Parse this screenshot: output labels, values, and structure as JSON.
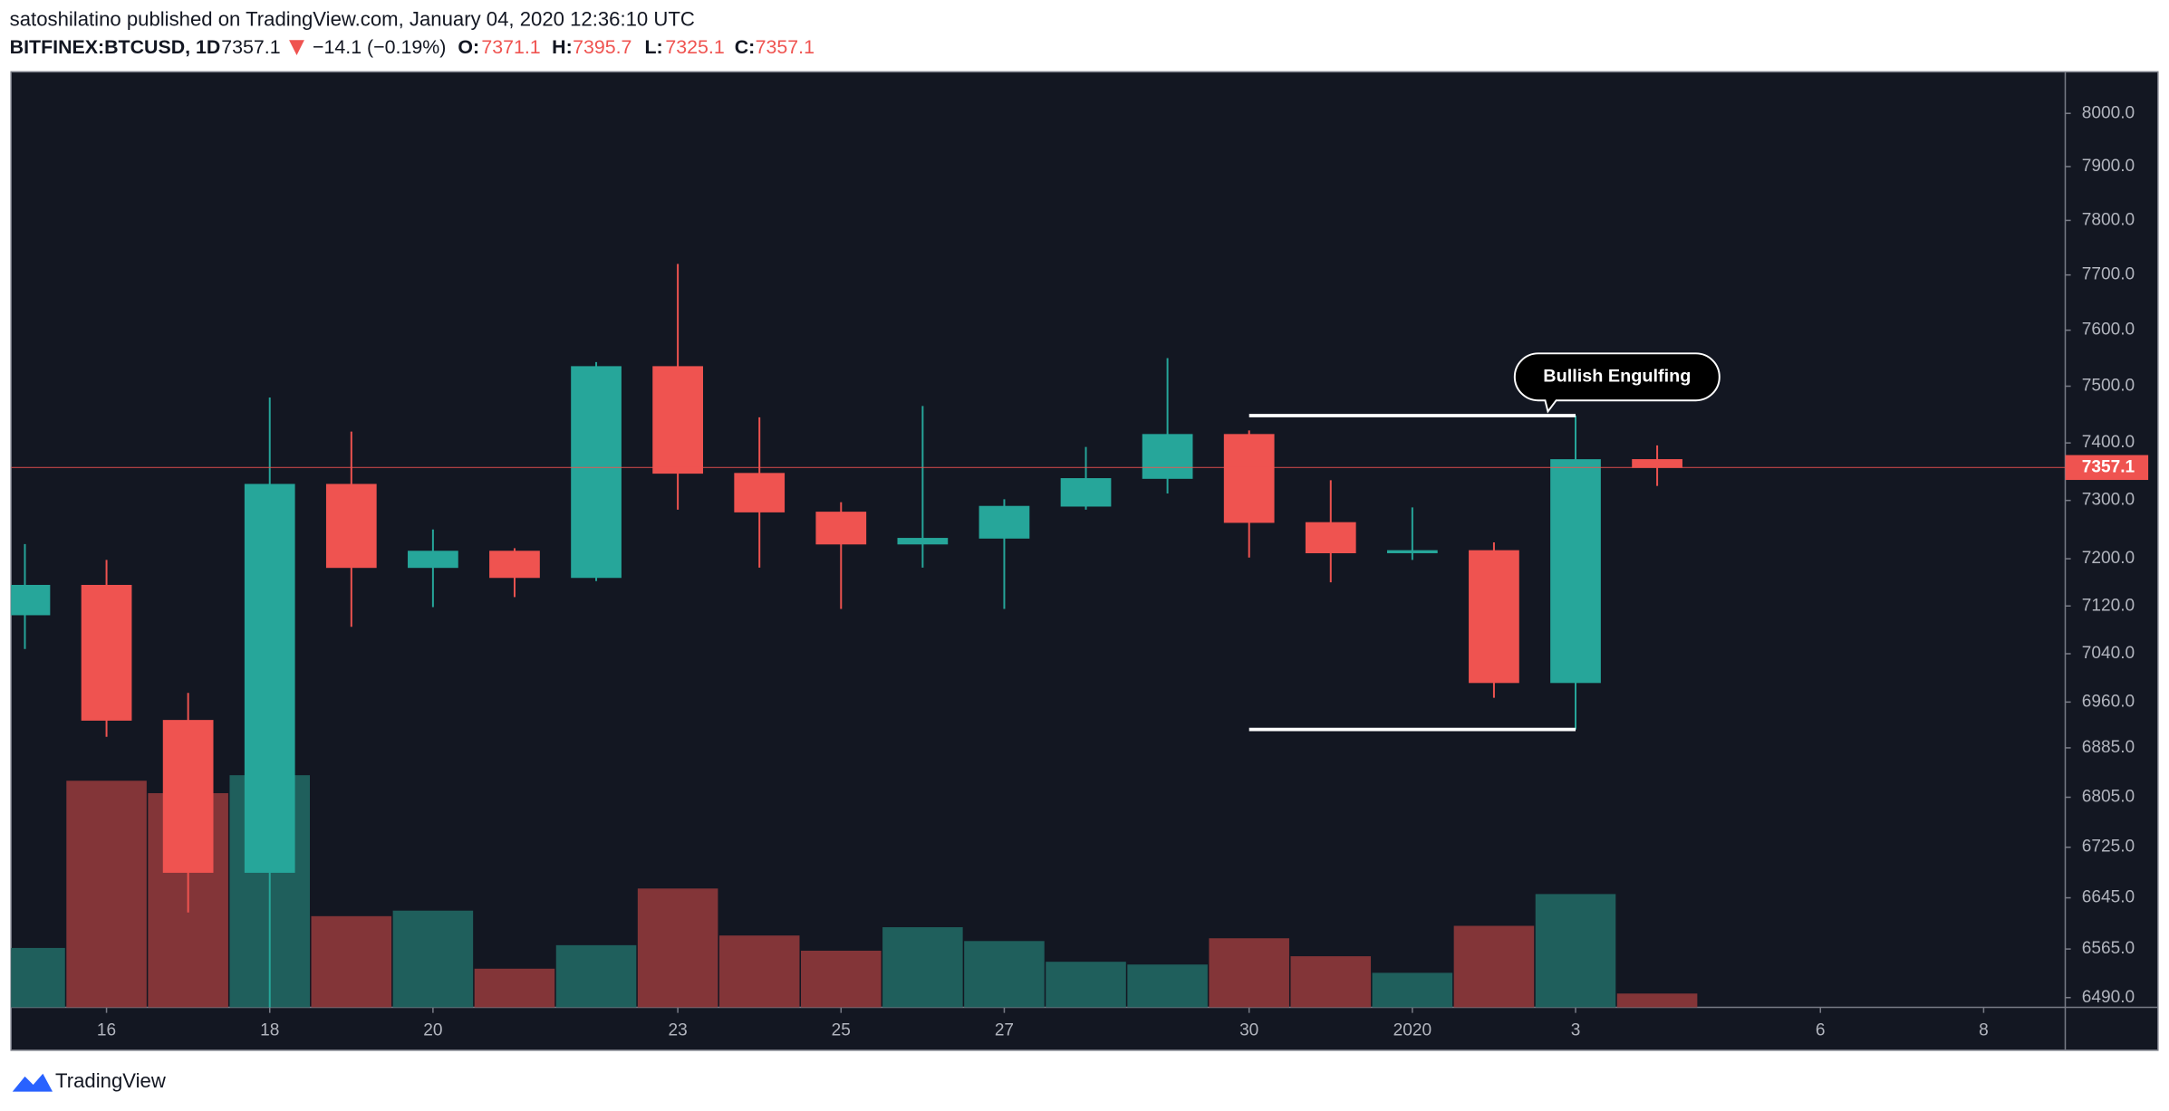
{
  "chart_data": {
    "type": "candlestick",
    "header": {
      "publisher_line": "satoshilatino published on TradingView.com, January 04, 2020 12:36:10 UTC",
      "symbol": "BITFINEX:BTCUSD, 1D",
      "change": "−14.1 (−0.19%)",
      "ohlc_labels": [
        "O:",
        "H:",
        "L:",
        "C:"
      ],
      "brand": "TradingView"
    },
    "annotation": "Bullish Engulfing",
    "categories": [
      null,
      "16",
      null,
      "18",
      null,
      "20",
      null,
      null,
      "23",
      null,
      "25",
      null,
      "27",
      null,
      null,
      "30",
      null,
      "2020",
      null,
      "3",
      null,
      null,
      "6",
      null,
      "8"
    ],
    "open": [
      7105,
      7155,
      6930,
      6685,
      7328,
      7185,
      7213,
      7168,
      7535,
      7347,
      7280,
      7225,
      7235,
      7290,
      7338,
      7415,
      7262,
      7210,
      7214,
      6992,
      7371.1,
      null,
      null,
      null,
      null
    ],
    "high": [
      7225,
      7198,
      6975,
      7480,
      7420,
      7250,
      7218,
      7543,
      7720,
      7445,
      7297,
      7465,
      7302,
      7393,
      7550,
      7422,
      7335,
      7288,
      7228,
      7448,
      7395.7,
      null,
      null,
      null,
      null
    ],
    "low": [
      7048,
      6903,
      6622,
      6440,
      7085,
      7118,
      7135,
      7162,
      7284,
      7185,
      7115,
      7185,
      7115,
      7284,
      7312,
      7202,
      7160,
      7198,
      6967,
      6915,
      7325.1,
      null,
      null,
      null,
      null
    ],
    "close": [
      7155,
      6930,
      6685,
      7328,
      7185,
      7213,
      7168,
      7535,
      7347,
      7280,
      7225,
      7235,
      7290,
      7338,
      7415,
      7262,
      7210,
      7214,
      6992,
      7371,
      7357.1,
      null,
      null,
      null,
      null
    ],
    "volume": [
      43,
      164,
      155,
      168,
      66,
      70,
      28,
      45,
      86,
      52,
      41,
      58,
      48,
      33,
      31,
      50,
      37,
      25,
      59,
      82,
      10,
      null,
      null,
      null,
      null
    ],
    "up_color": "#26a69a",
    "down_color": "#ef5350",
    "volume_up_color": "#1f5f5c",
    "volume_down_color": "#833538",
    "log_scale": true,
    "ylim": [
      6475,
      8079
    ],
    "yticks": [
      {
        "value": 8000,
        "label": "8000.0"
      },
      {
        "value": 7900,
        "label": "7900.0"
      },
      {
        "value": 7800,
        "label": "7800.0"
      },
      {
        "value": 7700,
        "label": "7700.0"
      },
      {
        "value": 7600,
        "label": "7600.0"
      },
      {
        "value": 7500,
        "label": "7500.0"
      },
      {
        "value": 7400,
        "label": "7400.0"
      },
      {
        "value": 7300,
        "label": "7300.0"
      },
      {
        "value": 7200,
        "label": "7200.0"
      },
      {
        "value": 7120,
        "label": "7120.0"
      },
      {
        "value": 7040,
        "label": "7040.0"
      },
      {
        "value": 6960,
        "label": "6960.0"
      },
      {
        "value": 6885,
        "label": "6885.0"
      },
      {
        "value": 6805,
        "label": "6805.0"
      },
      {
        "value": 6725,
        "label": "6725.0"
      },
      {
        "value": 6645,
        "label": "6645.0"
      },
      {
        "value": 6565,
        "label": "6565.0"
      },
      {
        "value": 6490,
        "label": "6490.0"
      }
    ]
  }
}
